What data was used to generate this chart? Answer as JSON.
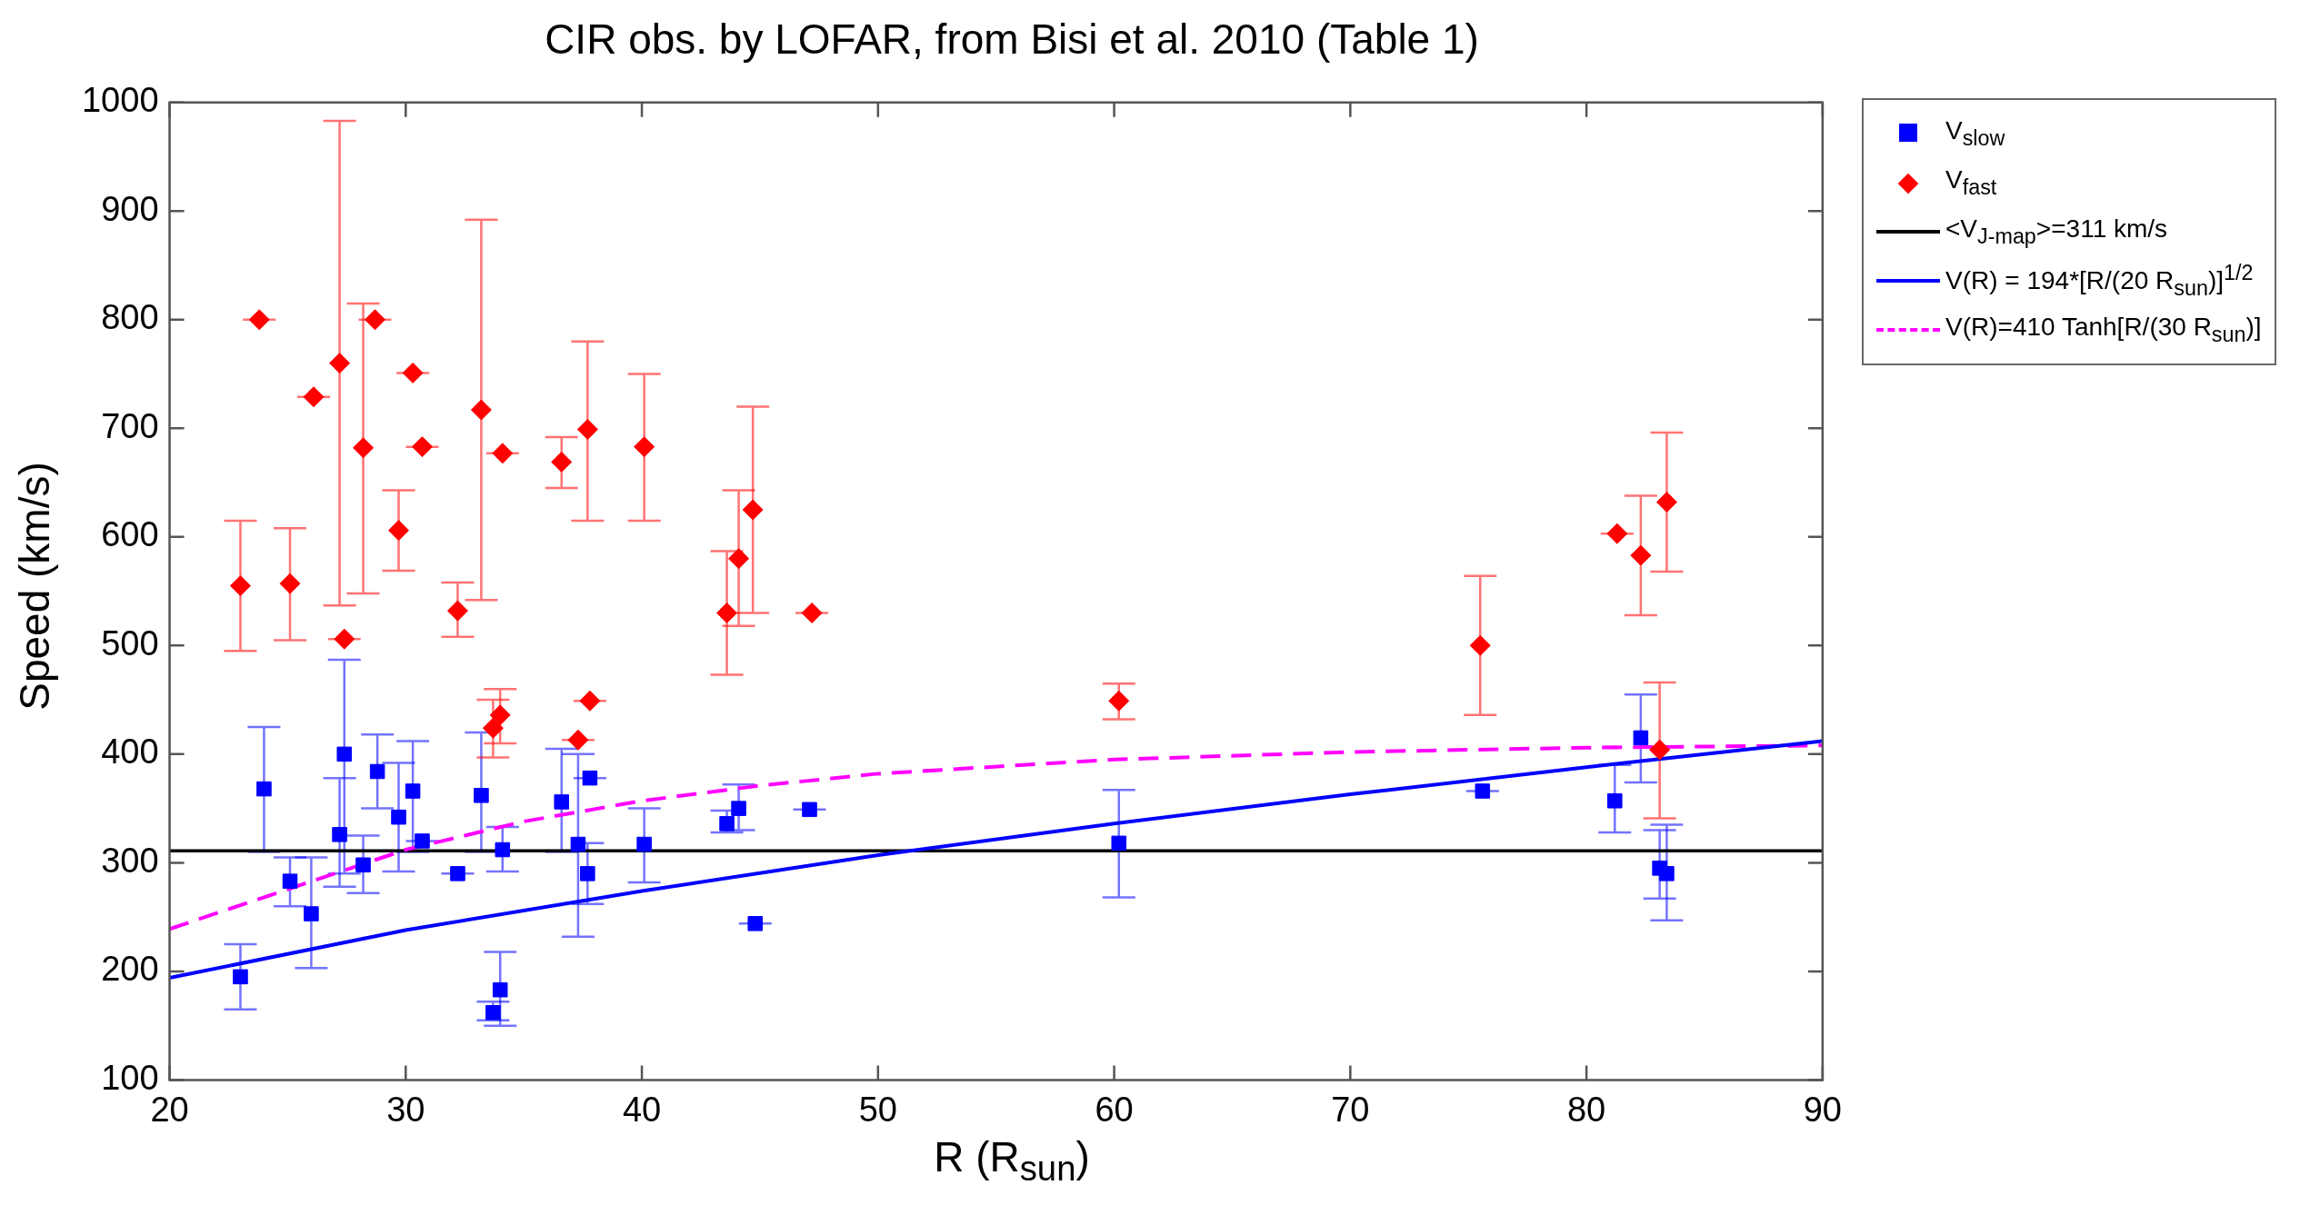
{
  "chart_data": {
    "type": "scatter",
    "title": "CIR obs. by LOFAR, from Bisi et al. 2010 (Table 1)",
    "xlabel": "R (R$_{sun}$)",
    "ylabel": "Speed (km/s)",
    "xlim": [
      20,
      90
    ],
    "xticks": [
      20,
      30,
      40,
      50,
      60,
      70,
      80,
      90
    ],
    "ylim": [
      100,
      1000
    ],
    "yticks": [
      100,
      200,
      300,
      400,
      500,
      600,
      700,
      800,
      900,
      1000
    ],
    "grid": false,
    "legend": "top right",
    "series": [
      {
        "name": "V$_{slow}$",
        "type": "scatter",
        "marker": "square",
        "color": "#0000ff",
        "x": [
          23,
          24,
          25.1,
          26,
          27.2,
          27.4,
          28.2,
          28.8,
          29.7,
          30.3,
          30.7,
          32.2,
          33.2,
          33.7,
          34,
          34.1,
          36.6,
          37.3,
          37.7,
          37.8,
          40.1,
          43.6,
          44.1,
          44.8,
          47.1,
          60.2,
          75.6,
          81.2,
          82.3,
          83.1,
          83.4
        ],
        "values": [
          195,
          368,
          283,
          253,
          326,
          400,
          298,
          384,
          342,
          366,
          320,
          290,
          362,
          162,
          183,
          312,
          356,
          317,
          290,
          378,
          317,
          336,
          350,
          244,
          349,
          318,
          366,
          357,
          415,
          295,
          290
        ],
        "errors": [
          [
            165,
            225
          ],
          [
            310,
            425
          ],
          [
            260,
            305
          ],
          [
            203,
            305
          ],
          [
            278,
            378
          ],
          [
            290,
            487
          ],
          [
            272,
            325
          ],
          [
            350,
            418
          ],
          [
            292,
            392
          ],
          [
            310,
            412
          ],
          0,
          0,
          [
            310,
            420
          ],
          [
            155,
            172
          ],
          [
            150,
            218
          ],
          [
            292,
            333
          ],
          [
            310,
            405
          ],
          [
            232,
            400
          ],
          [
            262,
            318
          ],
          0,
          [
            282,
            350
          ],
          [
            328,
            348
          ],
          [
            330,
            372
          ],
          0,
          0,
          [
            268,
            367
          ],
          0,
          [
            328,
            390
          ],
          [
            374,
            455
          ],
          [
            267,
            330
          ],
          [
            247,
            335
          ]
        ]
      },
      {
        "name": "V$_{fast}$",
        "type": "scatter",
        "marker": "diamond",
        "color": "#ff0000",
        "x": [
          23,
          23.8,
          25.1,
          26.1,
          27.2,
          27.4,
          28.2,
          28.7,
          29.7,
          30.3,
          30.7,
          32.2,
          33.2,
          33.7,
          34,
          34.1,
          36.6,
          37.3,
          37.8,
          37.7,
          40.1,
          43.6,
          44.1,
          44.7,
          47.2,
          60.2,
          75.5,
          81.3,
          82.3,
          83.4,
          83.1
        ],
        "values": [
          555,
          800,
          557,
          729,
          760,
          506,
          682,
          800,
          606,
          751,
          683,
          532,
          717,
          424,
          436,
          677,
          669,
          413,
          449,
          699,
          683,
          530,
          580,
          625,
          530,
          449,
          500,
          603,
          583,
          632,
          404
        ],
        "errors": [
          [
            495,
            615
          ],
          0,
          [
            505,
            608
          ],
          0,
          [
            537,
            983
          ],
          0,
          [
            548,
            815
          ],
          0,
          [
            569,
            643
          ],
          0,
          0,
          [
            508,
            558
          ],
          [
            542,
            892
          ],
          [
            397,
            450
          ],
          [
            410,
            460
          ],
          0,
          [
            645,
            692
          ],
          0,
          0,
          [
            615,
            780
          ],
          [
            615,
            750
          ],
          [
            473,
            587
          ],
          [
            518,
            643
          ],
          [
            530,
            720
          ],
          0,
          [
            432,
            465
          ],
          [
            436,
            564
          ],
          0,
          [
            528,
            638
          ],
          [
            568,
            696
          ],
          [
            341,
            466
          ]
        ]
      },
      {
        "name": "V(R) = 194*[R/(20 R$_{sun}$)]$^{1/2}$",
        "type": "line",
        "line_style": "solid",
        "color": "#0000ff",
        "x": [
          20,
          30,
          40,
          50,
          60,
          70,
          80,
          90
        ],
        "values": [
          194,
          238,
          274,
          307,
          336,
          363,
          388,
          412
        ]
      },
      {
        "name": "V(R)=410 Tanh[R/(30 R$_{sun}$)]",
        "type": "line",
        "line_style": "dashed",
        "color": "#ff00ff",
        "x": [
          20,
          30,
          35,
          40,
          45,
          50,
          60,
          70,
          80,
          90
        ],
        "values": [
          239,
          312,
          338,
          357,
          371,
          382,
          395,
          402,
          406,
          408
        ]
      }
    ],
    "ref_lines": [
      {
        "axis": "y",
        "value": 311,
        "label": "<V$_{J-map}$>=311 km/s",
        "color": "#000000"
      }
    ]
  }
}
